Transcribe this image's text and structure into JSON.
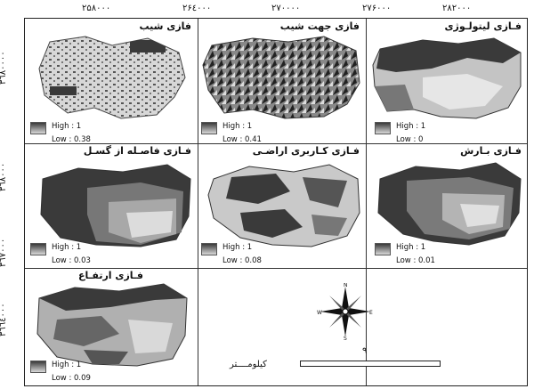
{
  "top_coords": [
    "۲۵۸۰۰۰",
    "۲۶٤۰۰۰",
    "۲۷۰۰۰۰",
    "۲۷۶۰۰۰",
    "۲۸۲۰۰۰"
  ],
  "left_coords": [
    "۳٦٨٠٠٠٠",
    "۳٦٨۰۰۰",
    "۳٦٧۰۰۰",
    "۳٦٦٤۰۰۰"
  ],
  "panels": [
    {
      "title": "فازی شیب",
      "high": "High : 1",
      "low": "Low : 0.38"
    },
    {
      "title": "فازی جهت شیب",
      "high": "High : 1",
      "low": "Low : 0.41"
    },
    {
      "title": "فـازی لیتولـوژی",
      "high": "High : 1",
      "low": "Low : 0"
    },
    {
      "title": "فـازی فاصـله از گسـل",
      "high": "High : 1",
      "low": "Low : 0.03"
    },
    {
      "title": "فـازی کـاربری اراضـی",
      "high": "High : 1",
      "low": "Low : 0.08"
    },
    {
      "title": "فـازی بـارش",
      "high": "High : 1",
      "low": "Low : 0.01"
    },
    {
      "title": "فـازی ارتفـاع",
      "high": "High : 1",
      "low": "Low : 0.09"
    }
  ],
  "compass": {
    "n": "N",
    "s": "S",
    "e": "E",
    "w": "W"
  },
  "scale": {
    "label": "کیلومــــتر",
    "number": "۹"
  }
}
